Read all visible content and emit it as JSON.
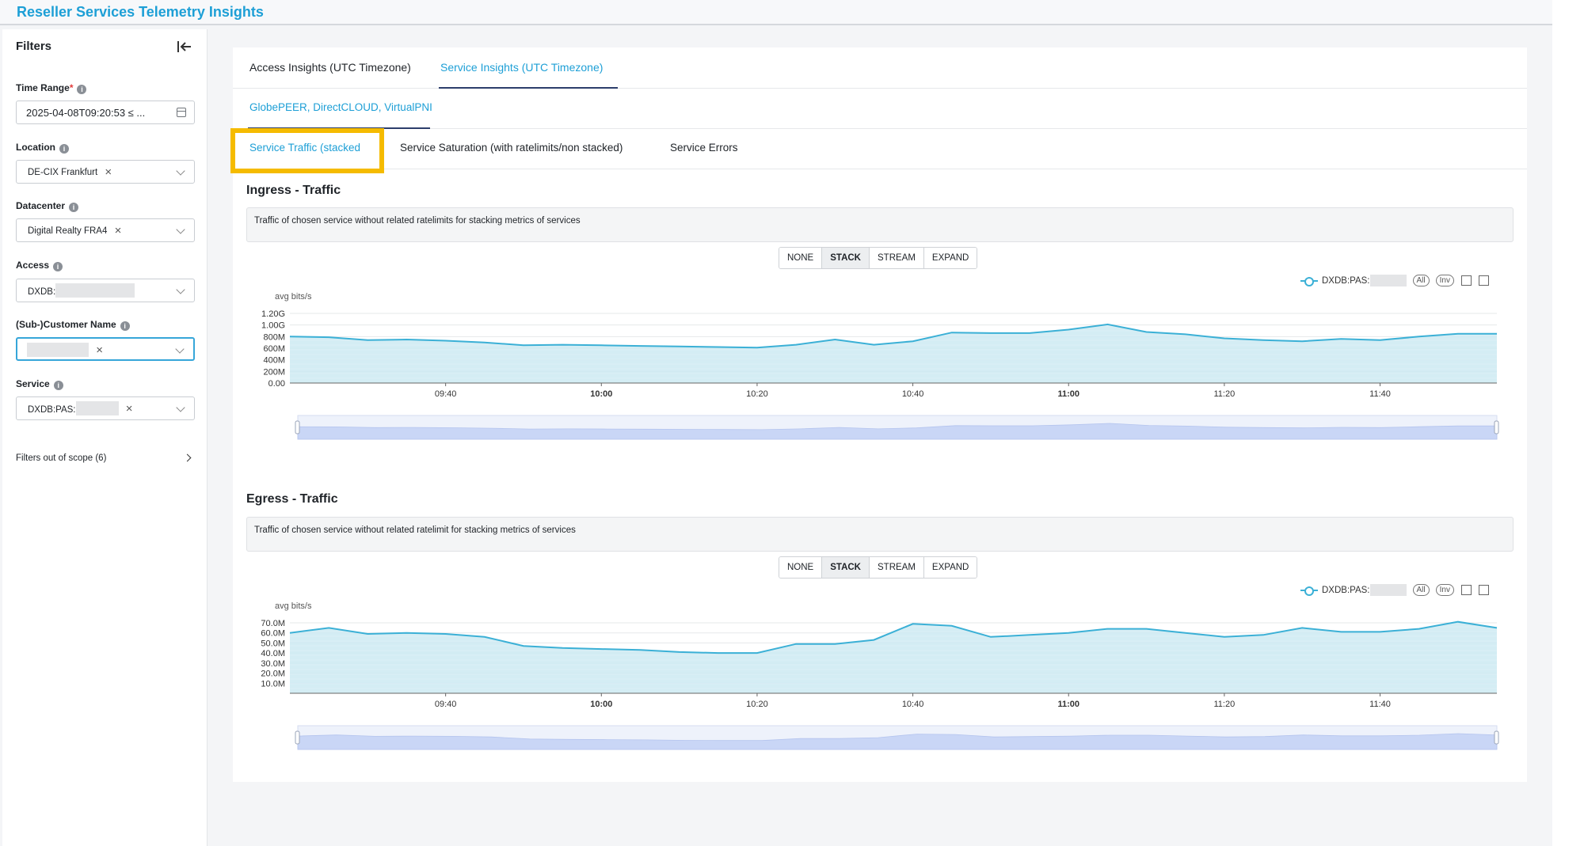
{
  "app": {
    "title": "Reseller Services Telemetry Insights"
  },
  "sidebar": {
    "title": "Filters",
    "filters": [
      {
        "label": "Time Range",
        "required": "*",
        "value": "2025-04-08T09:20:53 ≤ ..."
      },
      {
        "label": "Location",
        "tag": "DE-CIX Frankfurt"
      },
      {
        "label": "Datacenter",
        "tag": "Digital Realty FRA4"
      },
      {
        "label": "Access",
        "tag": "DXDB:"
      },
      {
        "label": "(Sub-)Customer Name",
        "tag": ""
      },
      {
        "label": "Service",
        "tag": "DXDB:PAS:"
      }
    ],
    "out_of_scope": "Filters out of scope (6)"
  },
  "tabs": {
    "level1": [
      "Access Insights (UTC Timezone)",
      "Service Insights (UTC Timezone)"
    ],
    "level2": [
      "GlobePEER, DirectCLOUD, VirtualPNI"
    ],
    "level3": [
      "Service Traffic (stacked",
      "Service Saturation (with ratelimits/non stacked)",
      "Service Errors"
    ]
  },
  "mode_buttons": [
    "NONE",
    "STACK",
    "STREAM",
    "EXPAND"
  ],
  "legend": {
    "series": "DXDB:PAS:",
    "all": "All",
    "inv": "Inv"
  },
  "sections": [
    {
      "title": "Ingress - Traffic",
      "desc": "Traffic of chosen service without related ratelimits for stacking metrics of services",
      "unit": "avg bits/s"
    },
    {
      "title": "Egress - Traffic",
      "desc": "Traffic of chosen service without related ratelimit for stacking metrics of services",
      "unit": "avg bits/s"
    }
  ],
  "colors": {
    "accent": "#1d9fd6",
    "series_line": "#3bb0d6",
    "series_fill": "#cdeaf2",
    "highlight": "#f5bb00"
  },
  "chart_data": [
    {
      "type": "area",
      "title": "Ingress - Traffic",
      "ylabel": "avg bits/s",
      "yticks": [
        "0.00",
        "200M",
        "400M",
        "600M",
        "800M",
        "1.00G",
        "1.20G"
      ],
      "ylim": [
        0,
        1200000000
      ],
      "xticks": [
        "09:40",
        "10:00",
        "10:20",
        "10:40",
        "11:00",
        "11:20",
        "11:40"
      ],
      "xlim": [
        "09:20",
        "11:55"
      ],
      "x": [
        "09:20",
        "09:25",
        "09:30",
        "09:35",
        "09:40",
        "09:45",
        "09:50",
        "09:55",
        "10:00",
        "10:05",
        "10:10",
        "10:15",
        "10:20",
        "10:25",
        "10:30",
        "10:35",
        "10:40",
        "10:45",
        "10:50",
        "10:55",
        "11:00",
        "11:05",
        "11:10",
        "11:15",
        "11:20",
        "11:25",
        "11:30",
        "11:35",
        "11:40",
        "11:45",
        "11:50",
        "11:55"
      ],
      "series": [
        {
          "name": "DXDB:PAS:",
          "values": [
            800000000,
            790000000,
            740000000,
            750000000,
            730000000,
            700000000,
            650000000,
            660000000,
            650000000,
            640000000,
            630000000,
            620000000,
            610000000,
            660000000,
            750000000,
            660000000,
            720000000,
            870000000,
            860000000,
            860000000,
            920000000,
            1010000000,
            880000000,
            840000000,
            770000000,
            740000000,
            720000000,
            760000000,
            740000000,
            800000000,
            850000000,
            850000000
          ]
        }
      ]
    },
    {
      "type": "area",
      "title": "Egress - Traffic",
      "ylabel": "avg bits/s",
      "yticks": [
        "10.0M",
        "20.0M",
        "30.0M",
        "40.0M",
        "50.0M",
        "60.0M",
        "70.0M"
      ],
      "ylim": [
        0,
        70000000
      ],
      "xticks": [
        "09:40",
        "10:00",
        "10:20",
        "10:40",
        "11:00",
        "11:20",
        "11:40"
      ],
      "xlim": [
        "09:20",
        "11:55"
      ],
      "x": [
        "09:20",
        "09:25",
        "09:30",
        "09:35",
        "09:40",
        "09:45",
        "09:50",
        "09:55",
        "10:00",
        "10:05",
        "10:10",
        "10:15",
        "10:20",
        "10:25",
        "10:30",
        "10:35",
        "10:40",
        "10:45",
        "10:50",
        "10:55",
        "11:00",
        "11:05",
        "11:10",
        "11:15",
        "11:20",
        "11:25",
        "11:30",
        "11:35",
        "11:40",
        "11:45",
        "11:50",
        "11:55"
      ],
      "series": [
        {
          "name": "DXDB:PAS:",
          "values": [
            60000000,
            65000000,
            59000000,
            60000000,
            59000000,
            56000000,
            47000000,
            45000000,
            44000000,
            43000000,
            41000000,
            40000000,
            40000000,
            49000000,
            49000000,
            53000000,
            69000000,
            67000000,
            56000000,
            58000000,
            60000000,
            64000000,
            64000000,
            60000000,
            56000000,
            58000000,
            65000000,
            61000000,
            61000000,
            64000000,
            71000000,
            65000000
          ]
        }
      ]
    }
  ]
}
